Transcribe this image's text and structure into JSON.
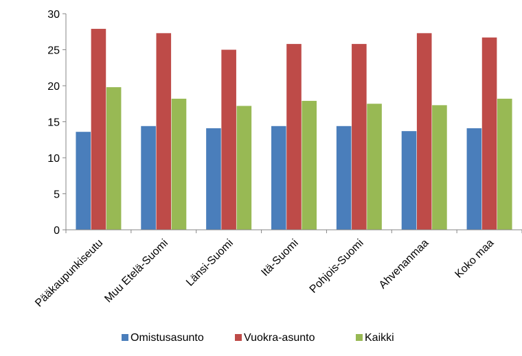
{
  "chart_data": {
    "type": "bar",
    "title": "",
    "xlabel": "",
    "ylabel": "",
    "ylim": [
      0,
      30
    ],
    "yticks": [
      0,
      5,
      10,
      15,
      20,
      25,
      30
    ],
    "grid": false,
    "legend_position": "bottom",
    "categories": [
      "Pääkaupunkiseutu",
      "Muu Etelä-Suomi",
      "Länsi-Suomi",
      "Itä-Suomi",
      "Pohjois-Suomi",
      "Ahvenanmaa",
      "Koko maa"
    ],
    "series": [
      {
        "name": "Omistusasunto",
        "color": "#4a7ebb",
        "values": [
          13.6,
          14.4,
          14.1,
          14.4,
          14.4,
          13.7,
          14.1
        ]
      },
      {
        "name": "Vuokra-asunto",
        "color": "#be4b48",
        "values": [
          27.9,
          27.3,
          25.0,
          25.8,
          25.8,
          27.3,
          26.7
        ]
      },
      {
        "name": "Kaikki",
        "color": "#98b954",
        "values": [
          19.8,
          18.2,
          17.2,
          17.9,
          17.5,
          17.3,
          18.2
        ]
      }
    ]
  }
}
